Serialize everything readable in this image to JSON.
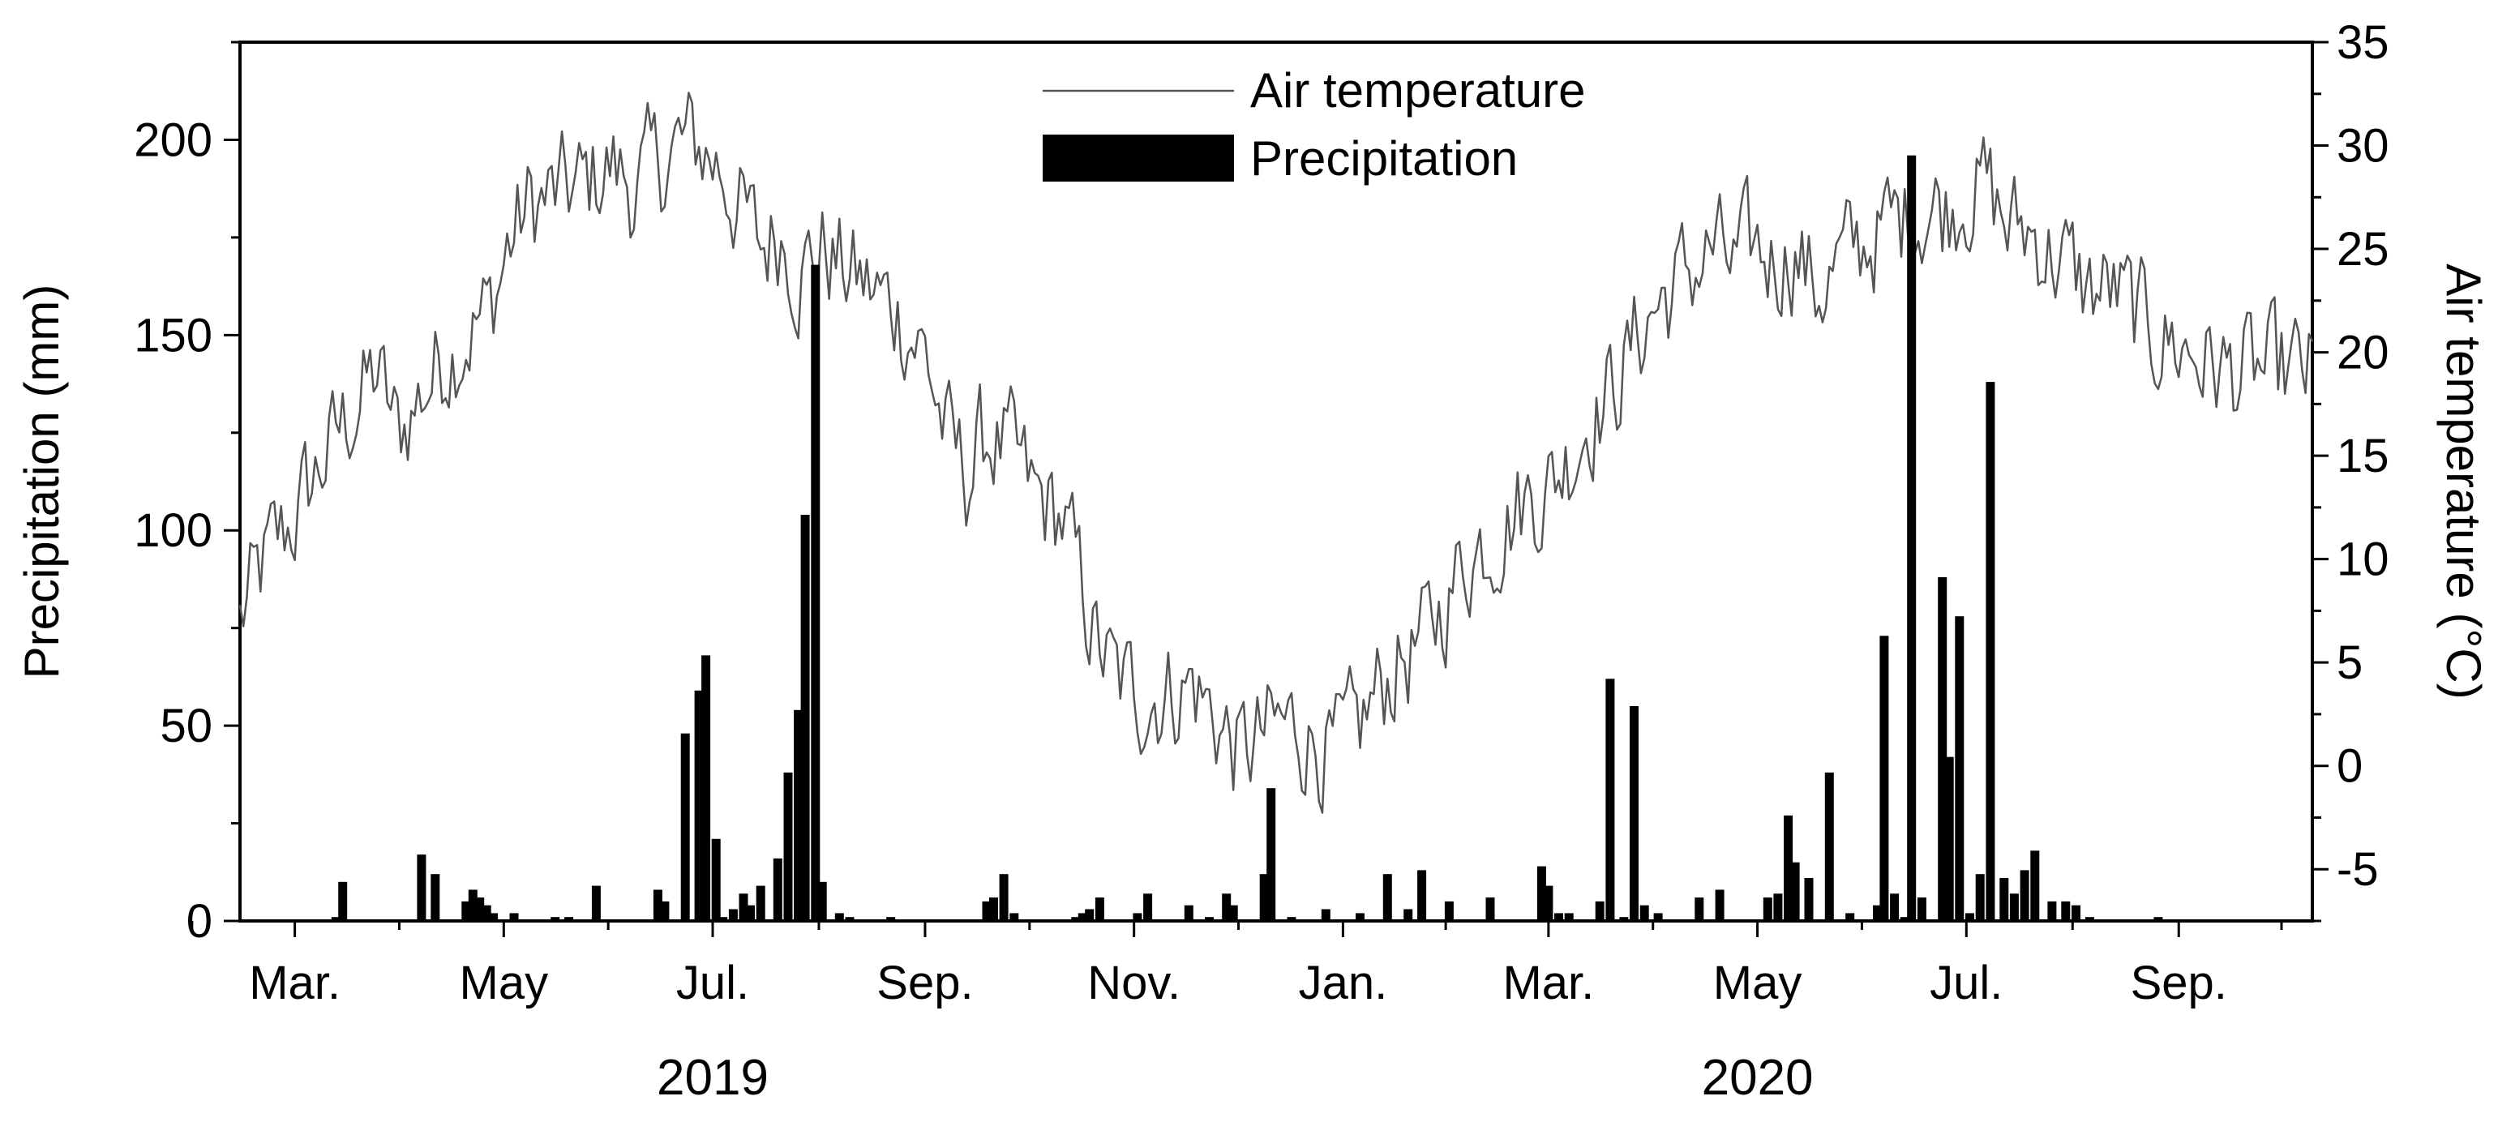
{
  "chart_data": {
    "type": "bar+line",
    "title": "",
    "xlabel_years": [
      "2019",
      "2020"
    ],
    "x_tick_labels": [
      "Mar.",
      "May",
      "Jul.",
      "Sep.",
      "Nov.",
      "Jan.",
      "Mar.",
      "May",
      "Jul.",
      "Sep."
    ],
    "x_range_days": [
      0,
      605
    ],
    "x_tick_days": [
      16,
      77,
      138,
      200,
      261,
      322,
      382,
      443,
      504,
      566
    ],
    "year_label_days": [
      138,
      443
    ],
    "left_axis": {
      "label": "Precipitation (mm)",
      "ylim": [
        0,
        225
      ],
      "ticks": [
        0,
        50,
        100,
        150,
        200
      ],
      "minor_step": 25
    },
    "right_axis": {
      "label": "Air temperature (°C)",
      "ylim": [
        -7.5,
        35
      ],
      "ticks": [
        -5,
        0,
        5,
        10,
        15,
        20,
        25,
        30,
        35
      ],
      "minor_step": 2.5
    },
    "legend": {
      "position": "top-center",
      "entries": [
        "Air temperature",
        "Precipitation"
      ]
    },
    "series": [
      {
        "name": "Precipitation",
        "kind": "bar",
        "color": "#000000",
        "points": [
          [
            30,
            10
          ],
          [
            28,
            1
          ],
          [
            53,
            17
          ],
          [
            57,
            12
          ],
          [
            66,
            5
          ],
          [
            68,
            8
          ],
          [
            70,
            6
          ],
          [
            72,
            4
          ],
          [
            74,
            2
          ],
          [
            80,
            2
          ],
          [
            92,
            1
          ],
          [
            96,
            1
          ],
          [
            104,
            9
          ],
          [
            122,
            8
          ],
          [
            124,
            5
          ],
          [
            130,
            48
          ],
          [
            134,
            59
          ],
          [
            136,
            68
          ],
          [
            139,
            21
          ],
          [
            141,
            1
          ],
          [
            144,
            3
          ],
          [
            147,
            7
          ],
          [
            149,
            4
          ],
          [
            152,
            9
          ],
          [
            157,
            16
          ],
          [
            160,
            38
          ],
          [
            163,
            54
          ],
          [
            165,
            104
          ],
          [
            168,
            168
          ],
          [
            170,
            10
          ],
          [
            175,
            2
          ],
          [
            178,
            1
          ],
          [
            190,
            1
          ],
          [
            218,
            5
          ],
          [
            220,
            6
          ],
          [
            223,
            12
          ],
          [
            226,
            2
          ],
          [
            244,
            1
          ],
          [
            246,
            2
          ],
          [
            248,
            3
          ],
          [
            251,
            6
          ],
          [
            262,
            2
          ],
          [
            265,
            7
          ],
          [
            277,
            4
          ],
          [
            283,
            1
          ],
          [
            288,
            7
          ],
          [
            290,
            4
          ],
          [
            299,
            12
          ],
          [
            301,
            34
          ],
          [
            307,
            1
          ],
          [
            317,
            3
          ],
          [
            327,
            2
          ],
          [
            335,
            12
          ],
          [
            341,
            3
          ],
          [
            345,
            13
          ],
          [
            353,
            5
          ],
          [
            365,
            6
          ],
          [
            380,
            14
          ],
          [
            382,
            9
          ],
          [
            385,
            2
          ],
          [
            388,
            2
          ],
          [
            397,
            5
          ],
          [
            400,
            62
          ],
          [
            404,
            1
          ],
          [
            407,
            55
          ],
          [
            410,
            4
          ],
          [
            414,
            2
          ],
          [
            426,
            6
          ],
          [
            432,
            8
          ],
          [
            446,
            6
          ],
          [
            449,
            7
          ],
          [
            452,
            27
          ],
          [
            454,
            15
          ],
          [
            458,
            11
          ],
          [
            464,
            38
          ],
          [
            470,
            2
          ],
          [
            478,
            4
          ],
          [
            480,
            73
          ],
          [
            483,
            7
          ],
          [
            486,
            1
          ],
          [
            488,
            196
          ],
          [
            491,
            6
          ],
          [
            497,
            88
          ],
          [
            499,
            42
          ],
          [
            502,
            78
          ],
          [
            505,
            2
          ],
          [
            508,
            12
          ],
          [
            511,
            138
          ],
          [
            515,
            11
          ],
          [
            518,
            7
          ],
          [
            521,
            13
          ],
          [
            524,
            18
          ],
          [
            529,
            5
          ],
          [
            533,
            5
          ],
          [
            536,
            4
          ],
          [
            540,
            1
          ],
          [
            560,
            1
          ]
        ]
      },
      {
        "name": "Air temperature",
        "kind": "line",
        "color": "#555555",
        "anchors": [
          [
            0,
            7
          ],
          [
            8,
            10
          ],
          [
            16,
            12
          ],
          [
            25,
            15
          ],
          [
            32,
            17
          ],
          [
            40,
            19
          ],
          [
            46,
            16
          ],
          [
            53,
            18
          ],
          [
            60,
            20
          ],
          [
            66,
            21
          ],
          [
            73,
            22
          ],
          [
            78,
            25
          ],
          [
            84,
            27
          ],
          [
            92,
            27.5
          ],
          [
            100,
            28
          ],
          [
            108,
            29
          ],
          [
            115,
            28
          ],
          [
            122,
            29
          ],
          [
            128,
            30
          ],
          [
            134,
            30
          ],
          [
            140,
            29
          ],
          [
            146,
            27
          ],
          [
            152,
            25
          ],
          [
            158,
            26
          ],
          [
            163,
            24
          ],
          [
            170,
            25
          ],
          [
            176,
            24
          ],
          [
            184,
            23
          ],
          [
            192,
            22
          ],
          [
            200,
            20
          ],
          [
            206,
            16
          ],
          [
            212,
            14
          ],
          [
            218,
            16
          ],
          [
            225,
            15
          ],
          [
            232,
            13
          ],
          [
            240,
            12
          ],
          [
            245,
            9
          ],
          [
            250,
            6
          ],
          [
            256,
            4
          ],
          [
            262,
            3.5
          ],
          [
            270,
            3.5
          ],
          [
            278,
            4
          ],
          [
            286,
            2
          ],
          [
            292,
            0.5
          ],
          [
            300,
            1.5
          ],
          [
            306,
            2
          ],
          [
            312,
            1.5
          ],
          [
            320,
            0.5
          ],
          [
            326,
            1.5
          ],
          [
            332,
            3.5
          ],
          [
            338,
            5
          ],
          [
            346,
            6
          ],
          [
            352,
            8
          ],
          [
            358,
            10
          ],
          [
            364,
            11
          ],
          [
            370,
            12
          ],
          [
            376,
            13
          ],
          [
            382,
            13.5
          ],
          [
            388,
            15
          ],
          [
            394,
            17
          ],
          [
            400,
            18
          ],
          [
            406,
            20
          ],
          [
            412,
            22
          ],
          [
            418,
            23
          ],
          [
            424,
            24
          ],
          [
            430,
            25
          ],
          [
            436,
            24
          ],
          [
            442,
            25
          ],
          [
            448,
            24.5
          ],
          [
            454,
            25
          ],
          [
            460,
            23
          ],
          [
            466,
            24
          ],
          [
            472,
            25
          ],
          [
            480,
            26
          ],
          [
            486,
            26.5
          ],
          [
            492,
            27
          ],
          [
            498,
            27
          ],
          [
            504,
            28
          ],
          [
            510,
            28
          ],
          [
            516,
            26
          ],
          [
            522,
            26
          ],
          [
            528,
            25
          ],
          [
            534,
            24
          ],
          [
            540,
            23
          ],
          [
            546,
            23
          ],
          [
            552,
            22
          ],
          [
            558,
            21
          ],
          [
            564,
            20.5
          ],
          [
            570,
            20
          ],
          [
            580,
            19
          ],
          [
            590,
            19
          ],
          [
            605,
            19
          ]
        ]
      }
    ]
  }
}
